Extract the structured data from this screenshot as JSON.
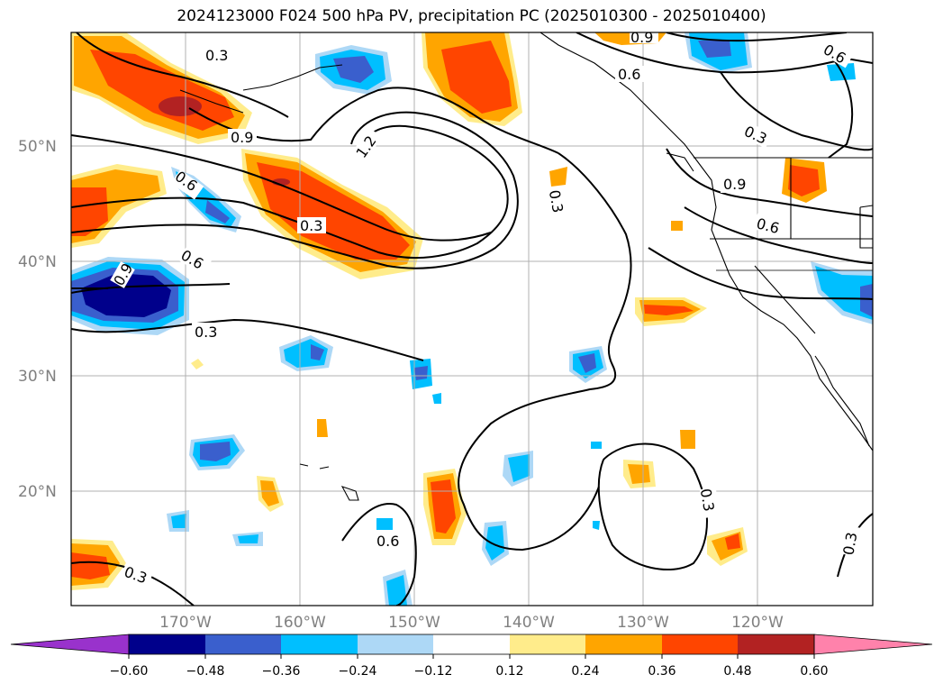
{
  "title": "2024123000 F024 500 hPa PV, precipitation PC (2025010300 - 2025010400)",
  "map": {
    "lat_labels": [
      "50°N",
      "40°N",
      "30°N",
      "20°N"
    ],
    "lon_labels": [
      "170°W",
      "160°W",
      "150°W",
      "140°W",
      "130°W",
      "120°W"
    ],
    "contour_labels": [
      "0.3",
      "0.9",
      "0.6",
      "0.3",
      "0.9",
      "1.2",
      "0.3",
      "0.3",
      "0.9",
      "0.6",
      "0.3",
      "0.6",
      "0.9",
      "0.3",
      "0.6",
      "0.6",
      "0.3",
      "0.3",
      "0.3",
      "0.6"
    ]
  },
  "colorbar": {
    "ticks": [
      "−0.60",
      "−0.48",
      "−0.36",
      "−0.24",
      "−0.12",
      "0.12",
      "0.24",
      "0.36",
      "0.48",
      "0.60"
    ],
    "colors": [
      "#9932cc",
      "#00008b",
      "#3a5fcd",
      "#00bfff",
      "#add8f6",
      "#ffffff",
      "#ffec8b",
      "#ffa500",
      "#ff4500",
      "#b22222",
      "#ff82ab"
    ]
  },
  "colors": {
    "orange": "#ffa500",
    "red_orange": "#ff4500",
    "dark_red": "#b22222",
    "yellow": "#ffec8b",
    "light_blue": "#add8f6",
    "sky_blue": "#00bfff",
    "royal_blue": "#3a5fcd",
    "navy": "#00008b",
    "grid": "#b0b0b0",
    "label_gray": "#808080"
  }
}
